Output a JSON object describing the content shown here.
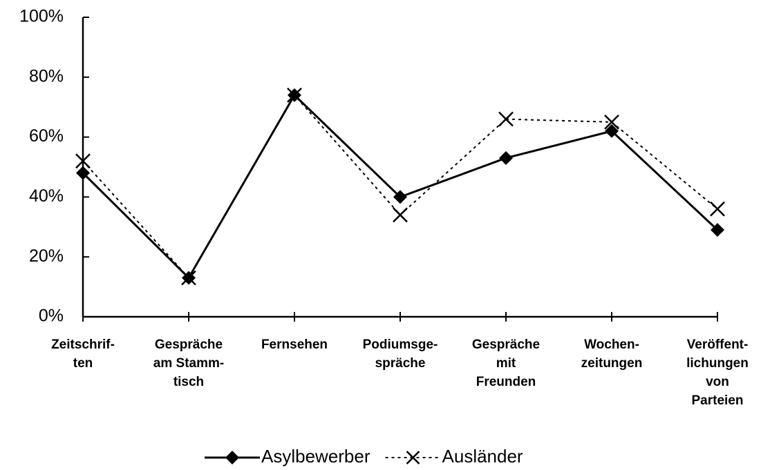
{
  "chart_data": {
    "type": "line",
    "categories": [
      "Zeitschrif-\nten",
      "Gespräche\nam Stamm-\ntisch",
      "Fernsehen",
      "Podiumsge-\nspräche",
      "Gespräche\nmit\nFreunden",
      "Wochen-\nzeitungen",
      "Veröffent-\nlichungen\nvon\nParteien"
    ],
    "series": [
      {
        "name": "Asylbewerber",
        "color": "#000000",
        "line_style": "solid",
        "marker": "diamond",
        "values": [
          48,
          13,
          74,
          40,
          53,
          62,
          29
        ]
      },
      {
        "name": "Ausländer",
        "color": "#000000",
        "line_style": "dotted",
        "marker": "x",
        "values": [
          52,
          13,
          74,
          34,
          66,
          65,
          36
        ]
      }
    ],
    "ylim": [
      0,
      100
    ],
    "yticks": [
      {
        "value": 0,
        "label": "0%"
      },
      {
        "value": 20,
        "label": "20%"
      },
      {
        "value": 40,
        "label": "40%"
      },
      {
        "value": 60,
        "label": "60%"
      },
      {
        "value": 80,
        "label": "80%"
      },
      {
        "value": 100,
        "label": "100%"
      }
    ],
    "grid": false,
    "legend": "bottom"
  }
}
